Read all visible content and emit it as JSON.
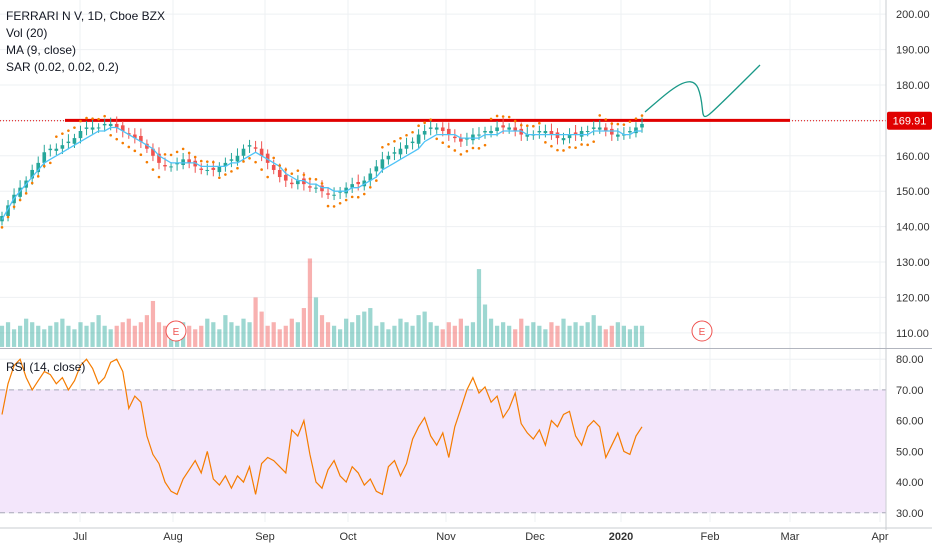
{
  "header": {
    "title": "FERRARI N V, 1D, Cboe BZX",
    "indicators": [
      "Vol (20)",
      "MA (9, close)",
      "SAR (0.02, 0.02, 0.2)"
    ]
  },
  "rsi_label": "RSI (14, close)",
  "earnings_label": "E",
  "colors": {
    "up": "#26a69a",
    "down": "#ef5350",
    "ma": "#4fc3f7",
    "sar": "#f57c00",
    "resistance": "#e00000",
    "projection": "#1a9988",
    "rsi_line": "#f57c00",
    "rsi_band": "#f3e6fb"
  },
  "chart_data": [
    {
      "type": "candlestick",
      "title": "FERRARI N V, 1D, Cboe BZX",
      "x_tick_labels": [
        "Jul",
        "Aug",
        "Sep",
        "Oct",
        "Nov",
        "Dec",
        "2020",
        "Feb",
        "Mar",
        "Apr"
      ],
      "y_ticks": [
        110,
        120,
        130,
        140,
        150,
        160,
        170,
        180,
        190,
        200
      ],
      "y_tick_labels": [
        "110.00",
        "120.00",
        "130.00",
        "140.00",
        "150.00",
        "160.00",
        "170.00",
        "180.00",
        "190.00",
        "200.00"
      ],
      "ylim": [
        106,
        204
      ],
      "last_price": 169.91,
      "last_price_label": "169.91",
      "resistance_level": 170,
      "close": [
        143,
        146,
        149,
        151,
        153,
        156,
        158,
        161,
        162,
        162,
        163,
        164,
        165,
        167,
        168,
        168,
        168,
        169,
        169,
        168,
        167,
        166,
        165,
        164,
        162,
        160,
        158,
        157,
        157,
        158,
        159,
        158,
        157,
        156,
        156,
        156,
        157,
        158,
        159,
        160,
        162,
        163,
        162,
        160,
        158,
        156,
        154,
        153,
        152,
        153,
        152,
        151,
        151,
        150,
        149,
        149,
        150,
        151,
        152,
        152,
        153,
        155,
        157,
        159,
        160,
        161,
        162,
        163,
        164,
        166,
        167,
        168,
        168,
        167,
        166,
        165,
        164,
        165,
        166,
        166,
        167,
        167,
        168,
        168,
        168,
        167,
        166,
        166,
        166,
        167,
        167,
        166,
        165,
        165,
        166,
        166,
        167,
        167,
        168,
        168,
        167,
        166,
        166,
        166,
        167,
        168,
        169
      ],
      "ma": [
        142,
        145,
        148,
        150,
        152,
        154,
        156,
        158,
        159,
        160,
        161,
        162,
        163,
        164,
        165,
        166,
        167,
        167,
        168,
        168,
        167,
        166,
        165,
        164,
        163,
        162,
        160,
        159,
        158,
        158,
        158,
        158,
        158,
        157,
        157,
        157,
        157,
        157,
        158,
        158,
        159,
        160,
        161,
        160,
        159,
        158,
        157,
        155,
        154,
        153,
        153,
        152,
        152,
        151,
        151,
        150,
        150,
        150,
        151,
        151,
        152,
        153,
        154,
        156,
        157,
        158,
        159,
        160,
        161,
        162,
        164,
        165,
        166,
        166,
        166,
        166,
        165,
        165,
        165,
        165,
        166,
        166,
        166,
        167,
        167,
        167,
        167,
        166,
        166,
        166,
        166,
        166,
        166,
        166,
        166,
        166,
        166,
        166,
        167,
        167,
        167,
        167,
        167,
        166,
        166,
        167,
        167
      ],
      "volume": [
        112,
        113,
        111,
        112,
        114,
        113,
        112,
        111,
        112,
        113,
        114,
        112,
        111,
        113,
        112,
        113,
        115,
        112,
        111,
        112,
        113,
        114,
        112,
        113,
        115,
        119,
        113,
        112,
        111,
        112,
        113,
        112,
        111,
        112,
        114,
        113,
        111,
        115,
        113,
        112,
        114,
        113,
        120,
        116,
        112,
        113,
        111,
        112,
        114,
        113,
        117,
        131,
        120,
        115,
        113,
        112,
        111,
        114,
        113,
        115,
        116,
        117,
        112,
        113,
        111,
        112,
        114,
        113,
        112,
        115,
        116,
        113,
        112,
        111,
        113,
        112,
        114,
        112,
        113,
        128,
        118,
        114,
        112,
        113,
        112,
        111,
        114,
        112,
        113,
        112,
        111,
        113,
        112,
        114,
        112,
        113,
        112,
        113,
        115,
        112,
        111,
        112,
        113,
        112,
        111,
        112,
        112
      ],
      "earnings_dates": [
        "Aug",
        "Feb"
      ],
      "projection_note": "projected path drawn after last candle"
    },
    {
      "type": "line",
      "name": "RSI (14, close)",
      "y_ticks": [
        30,
        40,
        50,
        60,
        70,
        80
      ],
      "y_tick_labels": [
        "30.00",
        "40.00",
        "50.00",
        "60.00",
        "70.00",
        "80.00"
      ],
      "ylim": [
        27,
        83
      ],
      "band": [
        30,
        70
      ],
      "values": [
        62,
        72,
        78,
        80,
        74,
        70,
        73,
        76,
        75,
        72,
        74,
        70,
        73,
        78,
        80,
        77,
        72,
        74,
        79,
        80,
        76,
        64,
        68,
        66,
        55,
        49,
        46,
        40,
        37,
        36,
        41,
        44,
        47,
        43,
        50,
        41,
        39,
        42,
        38,
        42,
        40,
        45,
        36,
        46,
        48,
        47,
        45,
        43,
        57,
        55,
        60,
        49,
        40,
        38,
        44,
        47,
        42,
        40,
        45,
        43,
        39,
        41,
        37,
        36,
        45,
        47,
        42,
        46,
        54,
        58,
        61,
        55,
        52,
        56,
        48,
        58,
        64,
        70,
        74,
        69,
        71,
        66,
        68,
        61,
        64,
        69,
        59,
        56,
        54,
        57,
        52,
        60,
        58,
        62,
        63,
        55,
        52,
        58,
        60,
        58,
        48,
        52,
        56,
        50,
        49,
        55,
        58
      ]
    }
  ]
}
